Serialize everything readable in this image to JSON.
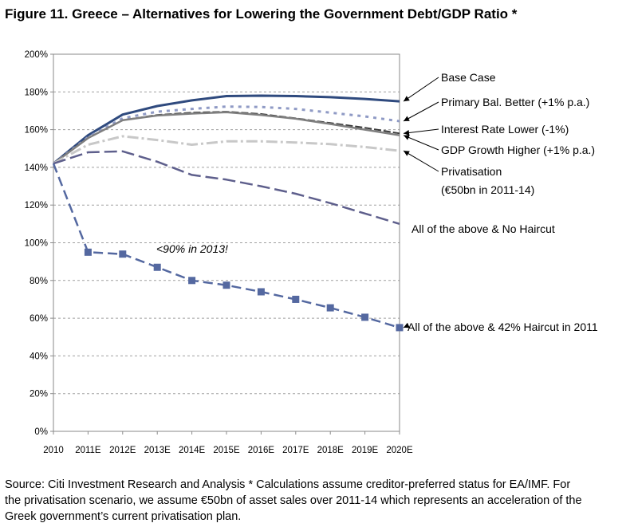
{
  "title": "Figure 11. Greece – Alternatives for Lowering the Government Debt/GDP Ratio *",
  "source": {
    "line1": "Source: Citi Investment Research and Analysis     * Calculations assume creditor-preferred status for EA/IMF. For",
    "line2": "the privatisation scenario, we assume €50bn of asset sales over 2011-14 which represents an acceleration of the",
    "line3": "Greek government’s current privatisation plan."
  },
  "chart_data": {
    "type": "line",
    "title": "Figure 11. Greece – Alternatives for Lowering the Government Debt/GDP Ratio *",
    "xlabel": "",
    "ylabel": "",
    "ylim": [
      0,
      200
    ],
    "grid": true,
    "categories": [
      "2010",
      "2011E",
      "2012E",
      "2013E",
      "2014E",
      "2015E",
      "2016E",
      "2017E",
      "2018E",
      "2019E",
      "2020E"
    ],
    "y_ticks": [
      "0%",
      "20%",
      "40%",
      "60%",
      "80%",
      "100%",
      "120%",
      "140%",
      "160%",
      "180%",
      "200%"
    ],
    "series": [
      {
        "name": "Base Case",
        "values": [
          142,
          157,
          168,
          172.5,
          175.5,
          177.8,
          178,
          177.8,
          177.2,
          176.3,
          175
        ],
        "color": "#2f4a7e",
        "dash": "",
        "width": 3
      },
      {
        "name": "Primary Bal. Better (+1% p.a.)",
        "values": [
          142,
          156,
          166,
          169.5,
          171,
          172.2,
          172,
          171,
          169,
          167,
          164.5
        ],
        "color": "#8f9ac5",
        "dash": "4 6",
        "width": 3
      },
      {
        "name": "Interest Rate Lower (-1%)",
        "values": [
          142,
          155.5,
          165,
          167.8,
          169,
          169.5,
          168.3,
          166,
          163.5,
          161,
          158
        ],
        "color": "#3a3a3a",
        "dash": "9 3",
        "width": 2
      },
      {
        "name": "GDP Growth Higher (+1% p.a.)",
        "values": [
          142,
          155.5,
          165,
          167.5,
          168.5,
          169.2,
          167.8,
          165.8,
          163,
          160,
          157
        ],
        "color": "#7f7f7f",
        "dash": "",
        "width": 2.5
      },
      {
        "name": "Privatisation",
        "values": [
          142,
          152,
          156.5,
          154.5,
          152,
          153.8,
          153.8,
          153.2,
          152.3,
          150.8,
          148.8
        ],
        "color": "#c8c8c8",
        "dash": "14 4 3 4",
        "width": 3
      },
      {
        "name": "All of the above & No Haircut",
        "values": [
          142,
          148,
          148.5,
          143,
          136,
          133.5,
          130,
          126,
          121,
          115.5,
          110
        ],
        "color": "#5e5f8c",
        "dash": "16 6",
        "width": 2.5
      },
      {
        "name": "All of the above & 42% Haircut in 2011",
        "values": [
          142,
          95,
          94,
          87,
          80,
          77.5,
          74,
          70,
          65.5,
          60.5,
          55
        ],
        "color": "#5468a0",
        "dash": "12 6",
        "width": 2.5,
        "markers": true
      }
    ],
    "legend_labels": [
      {
        "text": "Base Case",
        "series": "Base Case"
      },
      {
        "text": "Primary Bal. Better (+1% p.a.)",
        "series": "Primary Bal. Better (+1% p.a.)"
      },
      {
        "text": "Interest Rate Lower (-1%)",
        "series": "Interest Rate Lower (-1%)"
      },
      {
        "text": "GDP Growth Higher (+1% p.a.)",
        "series": "GDP Growth Higher (+1% p.a.)"
      },
      {
        "text": "Privatisation",
        "series": "Privatisation"
      },
      {
        "text": "(€50bn in 2011-14)",
        "series": "Privatisation"
      },
      {
        "text": "All of the above & No Haircut",
        "series": "All of the above & No Haircut"
      },
      {
        "text": "All of the above & 42% Haircut in 2011",
        "series": "All of the above & 42% Haircut in 2011"
      }
    ],
    "annotation": "<90% in 2013!"
  }
}
